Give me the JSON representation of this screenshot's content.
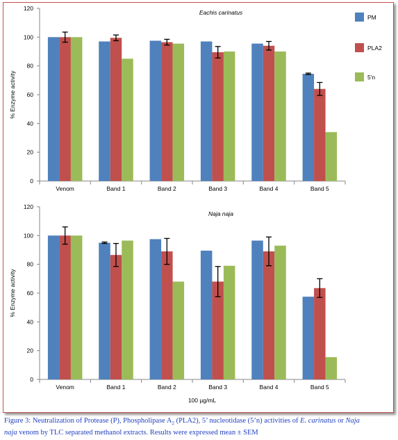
{
  "chart_data": [
    {
      "type": "bar",
      "title": "Eachis carinatus",
      "ylabel": "% Enzyme activity",
      "xlabel": "",
      "ylim": [
        0,
        120
      ],
      "yticks": [
        0,
        20,
        40,
        60,
        80,
        100,
        120
      ],
      "grid": false,
      "legend_position": "right",
      "categories": [
        "Venom",
        "Band 1",
        "Band 2",
        "Band 3",
        "Band 4",
        "Band 5"
      ],
      "series": [
        {
          "name": "PM",
          "color": "#4f81bd",
          "values": [
            100,
            97,
            97.5,
            97,
            95.5,
            74.5
          ],
          "errors": [
            0,
            0,
            0,
            0,
            0,
            0.5
          ]
        },
        {
          "name": "PLA2",
          "color": "#c0504d",
          "values": [
            100,
            99.5,
            96.5,
            89.5,
            94,
            64
          ],
          "errors": [
            3.5,
            2,
            2,
            4,
            3,
            4.5
          ]
        },
        {
          "name": "5'n",
          "color": "#9bbb59",
          "values": [
            100,
            85,
            95.5,
            90,
            90,
            34
          ],
          "errors": [
            0,
            0,
            0,
            0,
            0,
            0
          ]
        }
      ]
    },
    {
      "type": "bar",
      "title": "Naja naja",
      "ylabel": "% Enzyme activity",
      "xlabel": "100 µg/mL",
      "ylim": [
        0,
        120
      ],
      "yticks": [
        0,
        20,
        40,
        60,
        80,
        100,
        120
      ],
      "grid": false,
      "legend_position": "none",
      "categories": [
        "Venom",
        "Band 1",
        "Band 2",
        "Band 3",
        "Band 4",
        "Band 5"
      ],
      "series": [
        {
          "name": "PM",
          "color": "#4f81bd",
          "values": [
            100,
            95,
            97.5,
            89.5,
            96.5,
            57.5
          ],
          "errors": [
            0,
            0.5,
            0,
            0,
            0,
            0
          ]
        },
        {
          "name": "PLA2",
          "color": "#c0504d",
          "values": [
            100,
            86.5,
            89,
            68,
            89,
            63.5
          ],
          "errors": [
            6,
            8,
            9,
            10.5,
            10,
            6.5
          ]
        },
        {
          "name": "5'n",
          "color": "#9bbb59",
          "values": [
            100,
            96.5,
            68,
            79,
            93,
            15.5
          ],
          "errors": [
            0,
            0,
            0,
            0,
            0,
            0
          ]
        }
      ]
    }
  ],
  "caption": {
    "line1_a": "Figure 3: Neutralization of Protease (P), Phospholipase A",
    "line1_sub": "2",
    "line1_b": " (PLA2), 5’ nucleotidase (5’n) activities  of ",
    "line1_species1": "E. carinatus",
    "line1_c": " or ",
    "line1_species2a": "Naja",
    "line2_species2b": "naja",
    "line2_rest": " venom by TLC separated methanol extracts. Results were expressed mean ± SEM"
  }
}
